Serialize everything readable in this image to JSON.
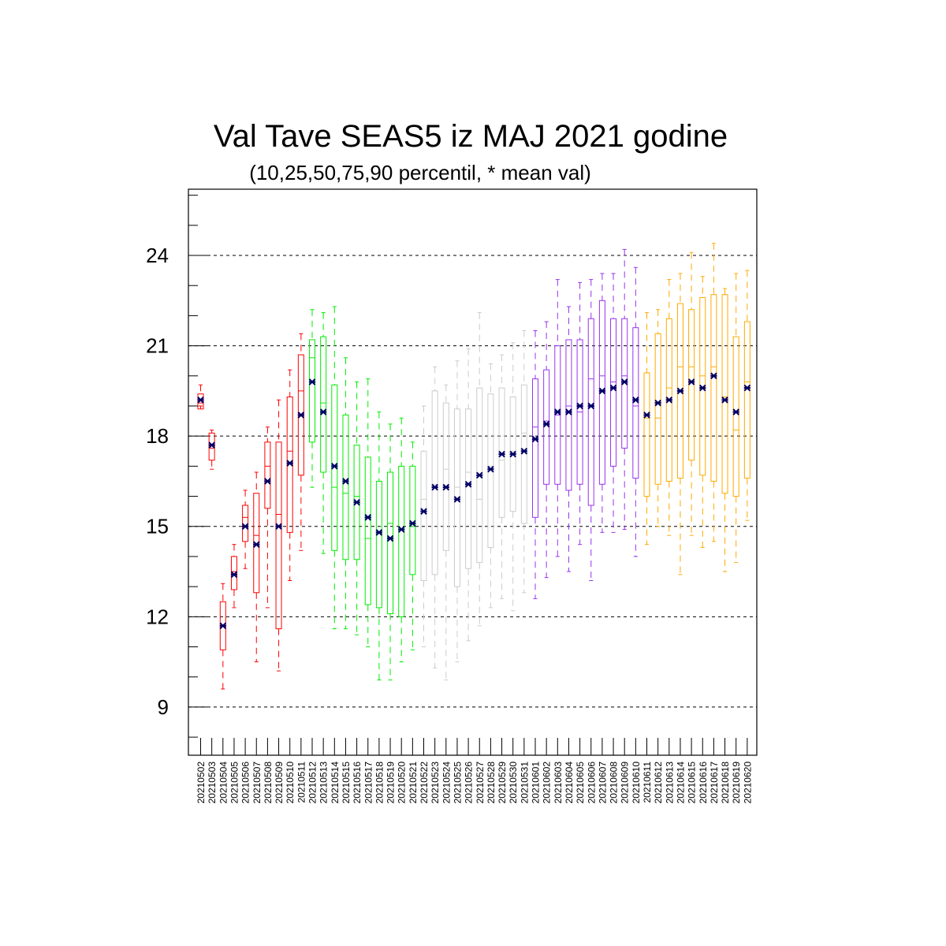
{
  "chart_data": {
    "type": "box",
    "title": "Val Tave SEAS5 iz MAJ 2021 godine",
    "subtitle": "(10,25,50,75,90 percentil, * mean val)",
    "xlabel": "",
    "ylabel": "",
    "ylim": [
      7.4,
      26.2
    ],
    "yticks": [
      9,
      12,
      15,
      18,
      21,
      24
    ],
    "grid": "dashed horizontal at major y ticks",
    "mean_marker_color": "#000066",
    "month_colors": {
      "May 2-11": "#ff0000",
      "May 12-21": "#00ee00",
      "May 22-31": "#cccccc",
      "Jun 1-10": "#9933ee",
      "Jun 11-20": "#ffaa00"
    },
    "categories": [
      "20210502",
      "20210503",
      "20210504",
      "20210505",
      "20210506",
      "20210507",
      "20210508",
      "20210509",
      "20210510",
      "20210511",
      "20210512",
      "20210513",
      "20210514",
      "20210515",
      "20210516",
      "20210517",
      "20210518",
      "20210519",
      "20210520",
      "20210521",
      "20210522",
      "20210523",
      "20210524",
      "20210525",
      "20210526",
      "20210527",
      "20210528",
      "20210529",
      "20210530",
      "20210531",
      "20210601",
      "20210602",
      "20210603",
      "20210604",
      "20210605",
      "20210606",
      "20210607",
      "20210608",
      "20210609",
      "20210610",
      "20210611",
      "20210612",
      "20210613",
      "20210614",
      "20210615",
      "20210616",
      "20210617",
      "20210618",
      "20210619",
      "20210620"
    ],
    "colors": [
      "#ff0000",
      "#ff0000",
      "#ff0000",
      "#ff0000",
      "#ff0000",
      "#ff0000",
      "#ff0000",
      "#ff0000",
      "#ff0000",
      "#ff0000",
      "#00ee00",
      "#00ee00",
      "#00ee00",
      "#00ee00",
      "#00ee00",
      "#00ee00",
      "#00ee00",
      "#00ee00",
      "#00ee00",
      "#00ee00",
      "#cccccc",
      "#cccccc",
      "#cccccc",
      "#cccccc",
      "#cccccc",
      "#cccccc",
      "#cccccc",
      "#cccccc",
      "#cccccc",
      "#cccccc",
      "#9933ee",
      "#9933ee",
      "#9933ee",
      "#9933ee",
      "#9933ee",
      "#9933ee",
      "#9933ee",
      "#9933ee",
      "#9933ee",
      "#9933ee",
      "#ffaa00",
      "#ffaa00",
      "#ffaa00",
      "#ffaa00",
      "#ffaa00",
      "#ffaa00",
      "#ffaa00",
      "#ffaa00",
      "#ffaa00",
      "#ffaa00"
    ],
    "p10": [
      19.0,
      16.9,
      9.6,
      12.3,
      13.6,
      10.5,
      12.3,
      10.2,
      13.2,
      14.2,
      16.3,
      14.1,
      11.6,
      11.6,
      11.4,
      11.0,
      9.9,
      9.9,
      10.5,
      10.9,
      11.0,
      10.3,
      9.9,
      10.5,
      11.2,
      11.7,
      12.3,
      12.6,
      12.2,
      12.8,
      12.6,
      13.3,
      14.0,
      13.5,
      14.4,
      13.2,
      14.8,
      14.8,
      14.9,
      14.0,
      14.4,
      15.0,
      14.7,
      13.4,
      14.7,
      14.3,
      14.5,
      13.5,
      13.8,
      15.2
    ],
    "p25": [
      18.9,
      17.2,
      10.9,
      12.9,
      14.5,
      12.8,
      15.6,
      11.6,
      14.8,
      16.7,
      17.8,
      16.8,
      14.2,
      13.9,
      13.9,
      12.4,
      12.3,
      12.1,
      12.0,
      13.4,
      13.2,
      13.4,
      14.2,
      13.0,
      13.6,
      13.8,
      14.3,
      15.3,
      15.5,
      15.1,
      15.3,
      16.4,
      16.4,
      16.2,
      16.4,
      15.7,
      16.4,
      17.0,
      17.6,
      16.6,
      16.0,
      16.4,
      16.5,
      16.6,
      17.2,
      16.7,
      16.5,
      16.1,
      16.0,
      16.6
    ],
    "p50": [
      19.1,
      17.6,
      11.7,
      13.5,
      15.3,
      14.7,
      17.0,
      15.4,
      17.5,
      19.5,
      20.6,
      19.1,
      16.3,
      16.1,
      16.0,
      14.6,
      14.8,
      15.1,
      14.9,
      15.0,
      15.9,
      16.4,
      16.9,
      16.3,
      16.8,
      15.9,
      17.0,
      17.2,
      17.5,
      18.1,
      18.3,
      18.5,
      18.7,
      19.0,
      18.8,
      19.9,
      20.0,
      19.8,
      20.0,
      19.0,
      18.6,
      18.6,
      19.6,
      20.3,
      20.3,
      20.0,
      20.3,
      19.3,
      18.2,
      19.8
    ],
    "p75": [
      19.4,
      18.1,
      12.5,
      14.0,
      15.7,
      16.1,
      17.8,
      17.8,
      19.3,
      20.7,
      21.2,
      21.3,
      19.7,
      18.7,
      17.7,
      17.3,
      16.5,
      16.8,
      17.0,
      17.0,
      17.5,
      19.5,
      19.1,
      18.9,
      18.9,
      19.6,
      19.4,
      19.6,
      19.3,
      19.7,
      19.9,
      20.2,
      21.0,
      21.2,
      21.2,
      21.9,
      22.5,
      21.9,
      21.9,
      21.6,
      20.1,
      21.4,
      21.9,
      22.4,
      22.2,
      22.6,
      22.7,
      22.7,
      21.3,
      21.8
    ],
    "p90": [
      19.7,
      18.2,
      13.1,
      14.4,
      16.2,
      16.8,
      18.3,
      19.2,
      20.2,
      21.4,
      22.2,
      22.1,
      22.3,
      20.6,
      19.8,
      19.9,
      18.8,
      18.4,
      18.6,
      17.8,
      19.0,
      20.3,
      19.7,
      20.5,
      20.9,
      22.1,
      20.4,
      20.7,
      21.1,
      21.5,
      21.5,
      21.8,
      23.2,
      22.3,
      23.1,
      23.2,
      23.4,
      23.4,
      24.2,
      23.6,
      22.1,
      22.2,
      23.2,
      23.4,
      24.1,
      23.3,
      24.4,
      22.9,
      23.4,
      23.5
    ],
    "mean": [
      19.2,
      17.7,
      11.7,
      13.4,
      15.0,
      14.4,
      16.5,
      15.0,
      17.1,
      18.7,
      19.8,
      18.8,
      17.0,
      16.5,
      15.8,
      15.3,
      14.8,
      14.6,
      14.9,
      15.1,
      15.5,
      16.3,
      16.3,
      15.9,
      16.4,
      16.7,
      16.9,
      17.4,
      17.4,
      17.5,
      17.9,
      18.4,
      18.8,
      18.8,
      19.0,
      19.0,
      19.5,
      19.6,
      19.8,
      19.2,
      18.7,
      19.1,
      19.2,
      19.5,
      19.8,
      19.6,
      20.0,
      19.2,
      18.8,
      19.6
    ]
  }
}
